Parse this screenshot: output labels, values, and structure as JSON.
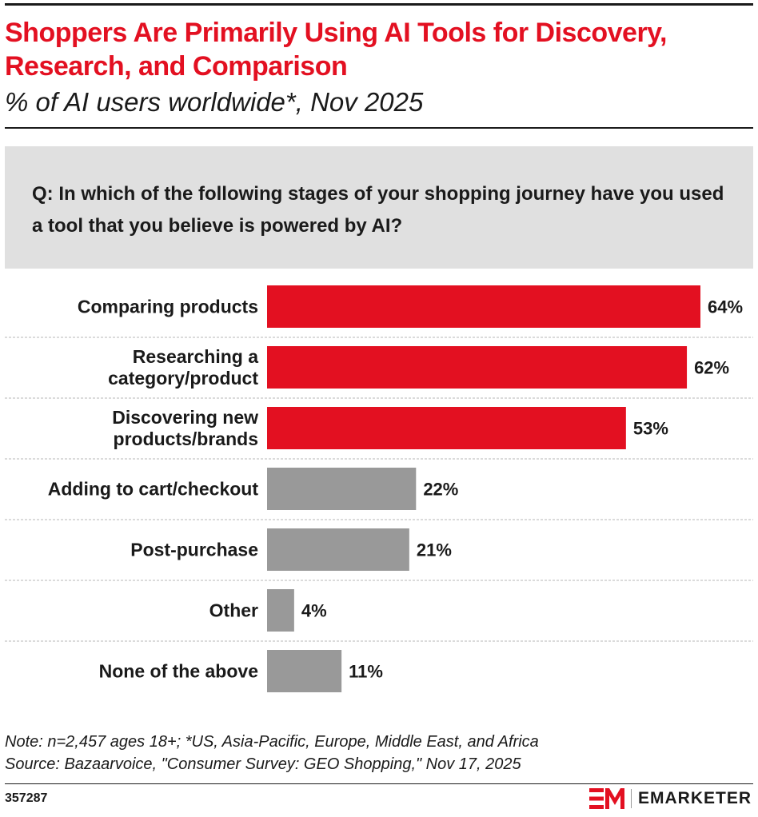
{
  "header": {
    "title": "Shoppers Are Primarily Using AI Tools for Discovery, Research, and Comparison",
    "subtitle": "% of AI users worldwide*, Nov 2025"
  },
  "question": "Q: In which of the following stages of your shopping journey have you used a tool that you believe is powered by AI?",
  "chart_data": {
    "type": "bar",
    "orientation": "horizontal",
    "categories": [
      "Comparing products",
      "Researching a category/product",
      "Discovering new products/brands",
      "Adding to cart/checkout",
      "Post-purchase",
      "Other",
      "None of the above"
    ],
    "category_lines": [
      [
        "Comparing products"
      ],
      [
        "Researching a",
        "category/product"
      ],
      [
        "Discovering new",
        "products/brands"
      ],
      [
        "Adding to cart/checkout"
      ],
      [
        "Post-purchase"
      ],
      [
        "Other"
      ],
      [
        "None of the above"
      ]
    ],
    "values": [
      64,
      62,
      53,
      22,
      21,
      4,
      11
    ],
    "value_labels": [
      "64%",
      "62%",
      "53%",
      "22%",
      "21%",
      "4%",
      "11%"
    ],
    "highlight_count": 3,
    "colors": {
      "highlight": "#e31021",
      "other": "#999999",
      "separator": "#cfcfcf"
    },
    "xlim": [
      0,
      64
    ]
  },
  "footer": {
    "note": "Note: n=2,457 ages 18+; *US, Asia-Pacific, Europe, Middle East, and Africa",
    "source": "Source: Bazaarvoice, \"Consumer Survey: GEO Shopping,\" Nov 17, 2025",
    "chart_id": "357287",
    "brand": "EMARKETER",
    "brand_color": "#e31021"
  }
}
